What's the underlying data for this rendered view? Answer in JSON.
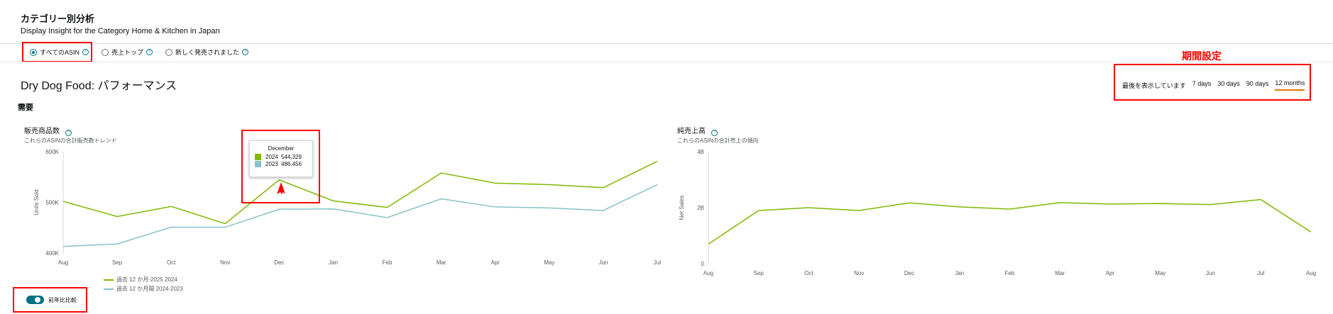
{
  "header": {
    "title": "カテゴリー別分析",
    "subtitle": "Display Insight for the Category Home & Kitchen in Japan"
  },
  "filters": {
    "options": [
      {
        "label": "すべてのASIN",
        "selected": true
      },
      {
        "label": "売上トップ",
        "selected": false
      },
      {
        "label": "新しく発売されました",
        "selected": false
      }
    ],
    "help_icon": "question-circle-icon"
  },
  "annotation": {
    "period_label": "期間設定",
    "color": "#ff0000"
  },
  "performance": {
    "title": "Dry Dog Food: パフォーマンス",
    "section": "需要"
  },
  "period": {
    "prefix": "最後を表示しています",
    "options": [
      "7 days",
      "30 days",
      "90 days",
      "12 months"
    ],
    "selected": "12 months"
  },
  "colors": {
    "series_current": "#7fb800",
    "series_previous": "#86c3c8",
    "accent": "#007185",
    "selected_underline": "#e77600"
  },
  "chart_units": {
    "title": "販売商品数",
    "subtitle": "これらのASINの合計販売数トレンド",
    "legend": [
      "過去 12 か月-2025 2024",
      "過去 12 か月間 2024-2023"
    ]
  },
  "chart_sales": {
    "title": "純売上高",
    "subtitle": "これらのASINの合計売上の傾向"
  },
  "tooltip": {
    "month": "December",
    "rows": [
      {
        "year": "2024",
        "value": "544,329"
      },
      {
        "year": "2023",
        "value": "486,456"
      }
    ]
  },
  "toggle": {
    "label": "前年比比較",
    "on": true
  },
  "chart_data": [
    {
      "type": "line",
      "title": "",
      "ylabel": "Units Sold",
      "xlabel": "",
      "x": [
        "Aug",
        "Sep",
        "Oct",
        "Nov",
        "Dec",
        "Jan",
        "Feb",
        "Mar",
        "Apr",
        "May",
        "Jun",
        "Jul"
      ],
      "y_ticks": [
        "400K",
        "500K",
        "600K"
      ],
      "ylim": [
        400000,
        600000
      ],
      "series": [
        {
          "name": "過去 12 か月-2025 2024",
          "values": [
            502000,
            472000,
            492000,
            458000,
            544329,
            503000,
            490000,
            558000,
            538000,
            535000,
            529000,
            581000
          ]
        },
        {
          "name": "過去 12 か月間 2024-2023",
          "values": [
            413000,
            418000,
            451000,
            451000,
            486456,
            487000,
            470000,
            507000,
            491000,
            489000,
            484000,
            535000
          ]
        }
      ]
    },
    {
      "type": "line",
      "title": "",
      "ylabel": "Net Sales",
      "xlabel": "",
      "x": [
        "Aug",
        "Sep",
        "Oct",
        "Nov",
        "Dec",
        "Jan",
        "Feb",
        "Mar",
        "Apr",
        "May",
        "Jun",
        "Jul",
        "Aug"
      ],
      "y_ticks": [
        "0",
        "2B",
        "4B"
      ],
      "ylim": [
        0,
        4000000000
      ],
      "series": [
        {
          "name": "",
          "values": [
            700000000,
            1900000000,
            2000000000,
            1900000000,
            2170000000,
            2030000000,
            1950000000,
            2180000000,
            2130000000,
            2150000000,
            2110000000,
            2290000000,
            1130000000
          ]
        }
      ]
    }
  ]
}
